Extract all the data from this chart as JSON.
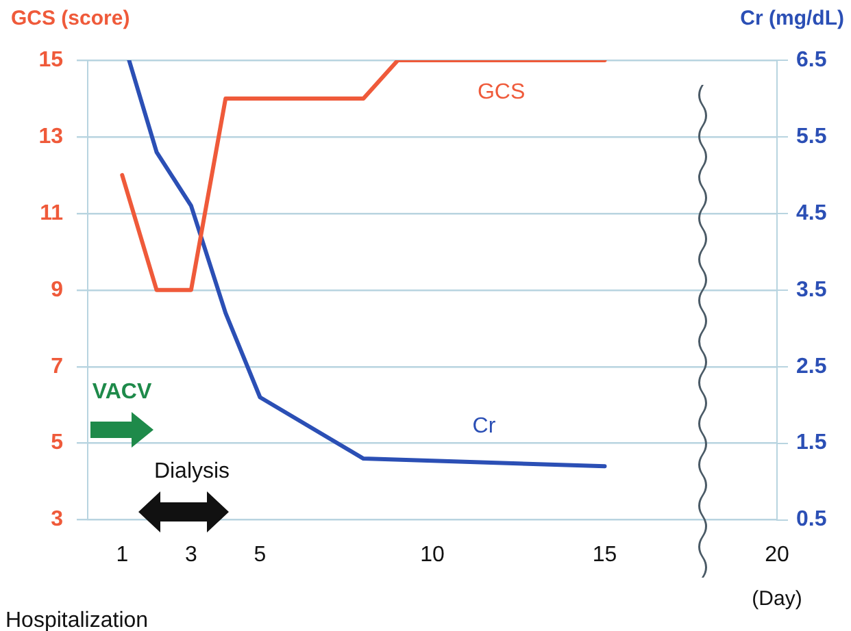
{
  "chart_data": {
    "type": "line",
    "xlabel": "(Day)",
    "ylabel": "GCS (score)",
    "y2label": "Cr (mg/dL)",
    "xlim": [
      0,
      20
    ],
    "xticks": [
      1,
      3,
      5,
      10,
      15,
      20
    ],
    "ylim": [
      3,
      15
    ],
    "yticks": [
      3,
      5,
      7,
      9,
      11,
      13,
      15
    ],
    "y2lim": [
      0.5,
      6.5
    ],
    "y2ticks": [
      0.5,
      1.5,
      2.5,
      3.5,
      4.5,
      5.5,
      6.5
    ],
    "grid": "y",
    "marker": "none",
    "line_style": "solid",
    "series": [
      {
        "name": "GCS",
        "color": "#ef5a3a",
        "x": [
          1,
          2,
          3,
          4,
          8,
          9,
          15
        ],
        "values": [
          12,
          9,
          9,
          14,
          14,
          15,
          15
        ]
      },
      {
        "name": "Cr",
        "color": "#2b4fb5",
        "axis": "y2",
        "x": [
          1.2,
          2,
          3,
          4,
          5,
          8,
          15
        ],
        "values": [
          6.5,
          5.3,
          4.6,
          3.2,
          2.1,
          1.3,
          1.2
        ]
      }
    ],
    "annotations": [
      "VACV",
      "Dialysis",
      "Hospitalization"
    ]
  }
}
